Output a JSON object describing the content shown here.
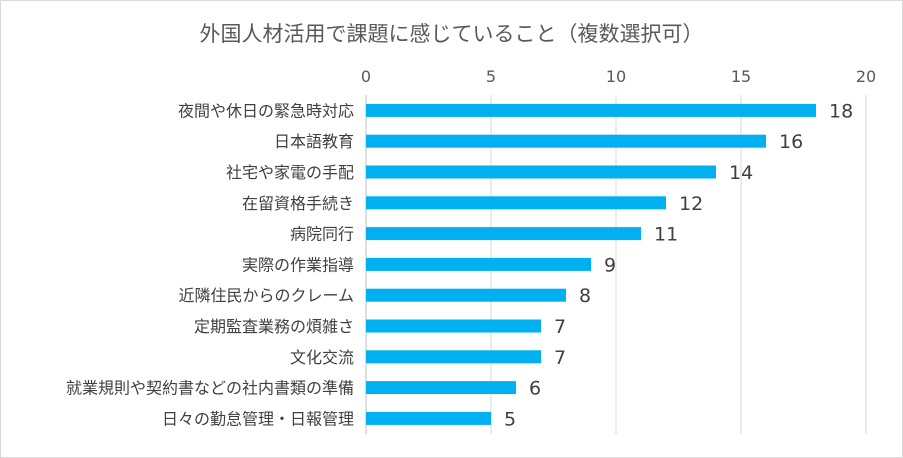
{
  "chart_data": {
    "type": "bar",
    "orientation": "horizontal",
    "title": "外国人材活用で課題に感じていること（複数選択可）",
    "xlabel": "",
    "ylabel": "",
    "xlim": [
      0,
      20
    ],
    "x_ticks": [
      0,
      5,
      10,
      15,
      20
    ],
    "x_axis_position": "top",
    "grid": true,
    "legend": "none",
    "bar_color": "#00B0F0",
    "categories": [
      "夜間や休日の緊急時対応",
      "日本語教育",
      "社宅や家電の手配",
      "在留資格手続き",
      "病院同行",
      "実際の作業指導",
      "近隣住民からのクレーム",
      "定期監査業務の煩雑さ",
      "文化交流",
      "就業規則や契約書などの社内書類の準備",
      "日々の勤怠管理・日報管理"
    ],
    "values": [
      18,
      16,
      14,
      12,
      11,
      9,
      8,
      7,
      7,
      6,
      5
    ],
    "data_labels": [
      "18",
      "16",
      "14",
      "12",
      "11",
      "9",
      "8",
      "7",
      "7",
      "6",
      "5"
    ],
    "tick_labels": [
      "0",
      "5",
      "10",
      "15",
      "20"
    ]
  }
}
